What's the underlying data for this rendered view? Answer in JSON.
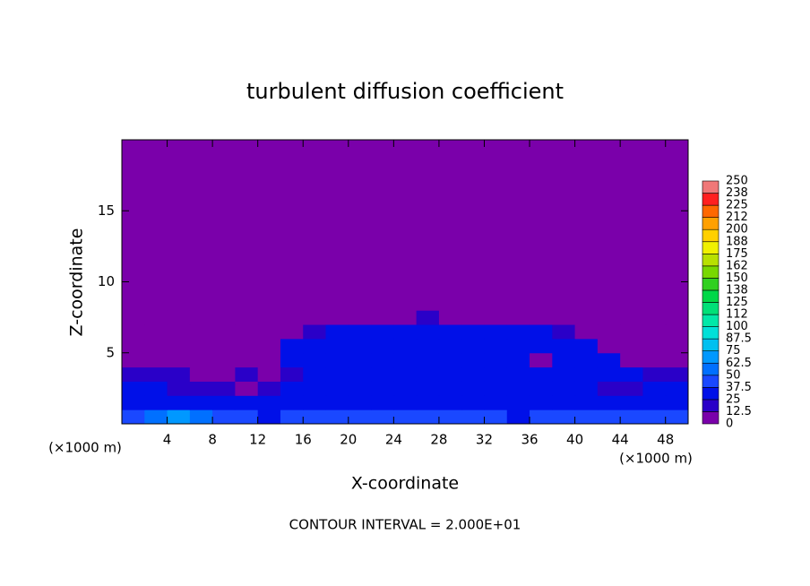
{
  "chart_data": {
    "type": "heatmap",
    "title": "turbulent diffusion coefficient",
    "xlabel": "X-coordinate",
    "ylabel": "Z-coordinate",
    "x_unit": "(×1000 m)",
    "y_unit": "(×1000 m)",
    "annotation": "CONTOUR INTERVAL = 2.000E+01",
    "xlim": [
      0,
      50
    ],
    "ylim": [
      0,
      20
    ],
    "xticks": [
      4,
      8,
      12,
      16,
      20,
      24,
      28,
      32,
      36,
      40,
      44,
      48
    ],
    "yticks": [
      5,
      10,
      15
    ],
    "x_edges": [
      0,
      2,
      4,
      6,
      8,
      10,
      12,
      14,
      16,
      18,
      20,
      22,
      24,
      26,
      28,
      30,
      32,
      34,
      36,
      38,
      40,
      42,
      44,
      46,
      48,
      50
    ],
    "y_edges": [
      0,
      1,
      2,
      3,
      4,
      5,
      6,
      7,
      8,
      20
    ],
    "values": [
      [
        40,
        55,
        65,
        60,
        45,
        40,
        35,
        38,
        40,
        40,
        40,
        40,
        38,
        40,
        40,
        38,
        38,
        35,
        38,
        38,
        38,
        38,
        40,
        42,
        40
      ],
      [
        35,
        30,
        30,
        28,
        30,
        30,
        32,
        35,
        35,
        35,
        35,
        35,
        30,
        35,
        32,
        32,
        30,
        30,
        32,
        32,
        30,
        30,
        30,
        35,
        35
      ],
      [
        30,
        25,
        15,
        20,
        15,
        10,
        15,
        28,
        30,
        30,
        30,
        28,
        30,
        32,
        30,
        30,
        28,
        28,
        28,
        25,
        28,
        20,
        20,
        25,
        28
      ],
      [
        20,
        15,
        15,
        10,
        10,
        15,
        12,
        20,
        28,
        30,
        28,
        25,
        30,
        30,
        30,
        28,
        28,
        25,
        25,
        25,
        25,
        25,
        25,
        20,
        20
      ],
      [
        10,
        10,
        5,
        5,
        8,
        10,
        10,
        28,
        30,
        30,
        30,
        30,
        25,
        30,
        30,
        28,
        28,
        28,
        10,
        25,
        25,
        25,
        10,
        10,
        10
      ],
      [
        5,
        0,
        0,
        0,
        0,
        0,
        5,
        25,
        30,
        28,
        28,
        28,
        28,
        30,
        28,
        28,
        28,
        28,
        28,
        28,
        28,
        10,
        5,
        0,
        0
      ],
      [
        0,
        0,
        0,
        0,
        0,
        0,
        0,
        0,
        20,
        25,
        25,
        25,
        25,
        28,
        25,
        25,
        25,
        25,
        25,
        20,
        0,
        0,
        0,
        0,
        0
      ],
      [
        0,
        0,
        0,
        0,
        0,
        0,
        0,
        0,
        0,
        0,
        0,
        0,
        10,
        15,
        12,
        0,
        0,
        0,
        0,
        0,
        0,
        0,
        0,
        0,
        0
      ],
      [
        0,
        0,
        0,
        0,
        0,
        0,
        0,
        0,
        0,
        0,
        0,
        0,
        0,
        0,
        0,
        0,
        0,
        0,
        0,
        0,
        0,
        0,
        0,
        0,
        0
      ]
    ],
    "colorbar": {
      "ticks": [
        0,
        12.5,
        25,
        37.5,
        50,
        62.5,
        75,
        87.5,
        100,
        {
          "value": 112.5,
          "label": "112"
        },
        125,
        {
          "value": 137.5,
          "label": "138"
        },
        150,
        {
          "value": 162.5,
          "label": "162"
        },
        175,
        {
          "value": 187.5,
          "label": "188"
        },
        200,
        {
          "value": 212.5,
          "label": "212"
        },
        225,
        {
          "value": 237.5,
          "label": "238"
        },
        250
      ],
      "colors": [
        "#7a00aa",
        "#2a00c8",
        "#0010e8",
        "#1a48ff",
        "#0070ff",
        "#0098ff",
        "#00c0f0",
        "#00e0d8",
        "#00e8a8",
        "#00e078",
        "#00d848",
        "#30d020",
        "#78d800",
        "#b8e000",
        "#f0f000",
        "#ffd000",
        "#ffa000",
        "#ff6800",
        "#ff2020",
        "#f07878"
      ]
    }
  }
}
